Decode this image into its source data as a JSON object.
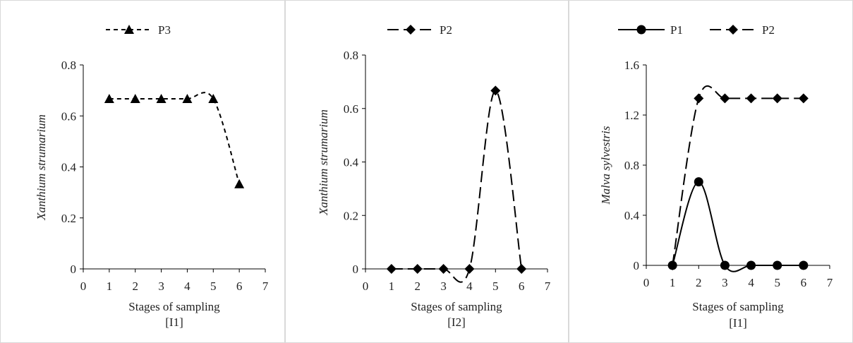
{
  "chart_data": [
    {
      "type": "line",
      "xlabel": "Stages of sampling",
      "xlabel2": "[I1]",
      "ylabel": "Xanthium strumarium",
      "xlim": [
        0,
        7
      ],
      "ylim": [
        0,
        0.8
      ],
      "xticks": [
        "0",
        "1",
        "2",
        "3",
        "4",
        "5",
        "6",
        "7"
      ],
      "yticks": [
        "0",
        "0.2",
        "0.4",
        "0.6",
        "0.8"
      ],
      "grid": false,
      "legend_position": "top",
      "series": [
        {
          "name": "P3",
          "marker": "triangle",
          "dash": "short",
          "x": [
            1,
            2,
            3,
            4,
            5,
            6
          ],
          "y": [
            0.667,
            0.667,
            0.667,
            0.667,
            0.667,
            0.333
          ]
        }
      ]
    },
    {
      "type": "line",
      "xlabel": "Stages of sampling",
      "xlabel2": "[I2]",
      "ylabel": "Xanthium strumarium",
      "xlim": [
        0,
        7
      ],
      "ylim": [
        0,
        0.8
      ],
      "xticks": [
        "0",
        "1",
        "2",
        "3",
        "4",
        "5",
        "6",
        "7"
      ],
      "yticks": [
        "0",
        "0.2",
        "0.4",
        "0.6",
        "0.8"
      ],
      "grid": false,
      "legend_position": "top",
      "series": [
        {
          "name": "P2",
          "marker": "diamond",
          "dash": "long",
          "x": [
            1,
            2,
            3,
            4,
            5,
            6
          ],
          "y": [
            0,
            0,
            0,
            0,
            0.667,
            0
          ]
        }
      ]
    },
    {
      "type": "line",
      "xlabel": "Stages of sampling",
      "xlabel2": "[I1]",
      "ylabel": "Malva sylvestris",
      "xlim": [
        0,
        7
      ],
      "ylim": [
        0,
        1.6
      ],
      "xticks": [
        "0",
        "1",
        "2",
        "3",
        "4",
        "5",
        "6",
        "7"
      ],
      "yticks": [
        "0",
        "0.4",
        "0.8",
        "1.2",
        "1.6"
      ],
      "grid": false,
      "legend_position": "top",
      "series": [
        {
          "name": "P1",
          "marker": "circle",
          "dash": "solid",
          "x": [
            1,
            2,
            3,
            4,
            5,
            6
          ],
          "y": [
            0,
            0.667,
            0,
            0,
            0,
            0
          ]
        },
        {
          "name": "P2",
          "marker": "diamond",
          "dash": "long",
          "x": [
            1,
            2,
            3,
            4,
            5,
            6
          ],
          "y": [
            0,
            1.333,
            1.333,
            1.333,
            1.333,
            1.333
          ]
        }
      ]
    }
  ],
  "colors": {
    "line": "#000000",
    "axis": "#000000",
    "border": "#d9d9d9",
    "background": "#ffffff"
  }
}
